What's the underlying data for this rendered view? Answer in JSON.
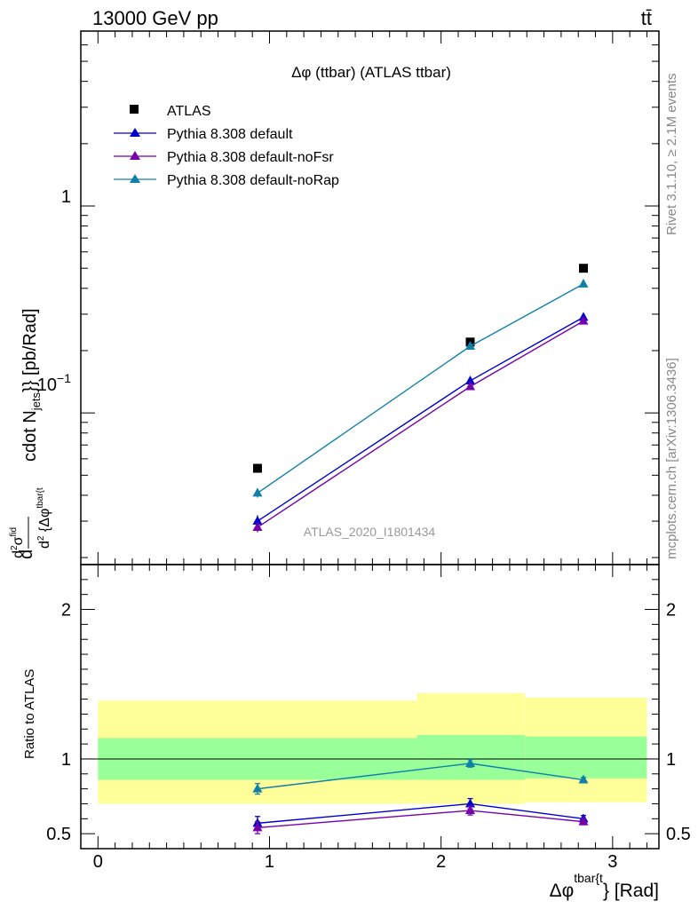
{
  "header": {
    "left": "13000 GeV pp",
    "right": "tt̄"
  },
  "side": {
    "rivet": "Rivet 3.1.10, ≥ 2.1M events",
    "mcplots": "mcplots.cern.ch [arXiv:1306.3436]"
  },
  "watermark": "ATLAS_2020_I1801434",
  "chart_data": [
    {
      "type": "scatter",
      "title": "Δφ (ttbar) (ATLAS ttbar)",
      "xlabel": "Δφ^{tbar{t}} [Rad]",
      "ylabel": "d²σ^{fid} / d² {Δφ^{tbar{t}} cdot N_{jets}} [pb/Rad]",
      "yscale": "log",
      "xlim": [
        -0.1,
        3.27
      ],
      "ylim": [
        0.0185,
        7.0
      ],
      "y_ticklabels": [
        {
          "value": 1,
          "label": "1"
        },
        {
          "value": 0.1,
          "label": "10^{-1}"
        }
      ],
      "legend_position": "top-left",
      "series": [
        {
          "name": "ATLAS",
          "color": "#000000",
          "marker": "square",
          "x": [
            0.93,
            2.17,
            2.83
          ],
          "y": [
            0.054,
            0.22,
            0.5
          ],
          "yerr": [
            0.002,
            0.006,
            0.01
          ]
        },
        {
          "name": "Pythia 8.308 default",
          "color": "#0000cc",
          "marker": "triangle",
          "x": [
            0.93,
            2.17,
            2.83
          ],
          "y": [
            0.03,
            0.143,
            0.29
          ],
          "yerr": [
            0.002,
            0.006,
            0.005
          ]
        },
        {
          "name": "Pythia 8.308 default-noFsr",
          "color": "#7700aa",
          "marker": "triangle",
          "x": [
            0.93,
            2.17,
            2.83
          ],
          "y": [
            0.028,
            0.134,
            0.278
          ],
          "yerr": [
            0.0015,
            0.005,
            0.004
          ]
        },
        {
          "name": "Pythia 8.308 default-noRap",
          "color": "#1180a8",
          "marker": "triangle",
          "x": [
            0.93,
            2.17,
            2.83
          ],
          "y": [
            0.041,
            0.21,
            0.42
          ],
          "yerr": [
            0.002,
            0.005,
            0.005
          ]
        }
      ]
    },
    {
      "type": "scatter",
      "xlabel": "Δφ^{tbar{t}} [Rad]",
      "ylabel": "Ratio to ATLAS",
      "xlim": [
        -0.1,
        3.27
      ],
      "ylim": [
        0.4,
        2.3
      ],
      "x_ticks": [
        0,
        1,
        2,
        3
      ],
      "y_ticks": [
        0.5,
        1,
        2
      ],
      "reference_line": 1,
      "bands": [
        {
          "x0": 0.0,
          "x1": 1.86,
          "inner": [
            0.86,
            1.14
          ],
          "outer": [
            0.7,
            1.39
          ]
        },
        {
          "x0": 1.86,
          "x1": 2.49,
          "inner": [
            0.86,
            1.16
          ],
          "outer": [
            0.7,
            1.44
          ]
        },
        {
          "x0": 2.49,
          "x1": 3.2,
          "inner": [
            0.87,
            1.15
          ],
          "outer": [
            0.71,
            1.41
          ]
        }
      ],
      "band_colors": {
        "inner": "#99ff99",
        "outer": "#ffff99"
      },
      "series": [
        {
          "name": "Pythia 8.308 default",
          "color": "#0000cc",
          "x": [
            0.93,
            2.17,
            2.83
          ],
          "y": [
            0.57,
            0.7,
            0.6
          ],
          "yerr": [
            0.045,
            0.035,
            0.022
          ]
        },
        {
          "name": "Pythia 8.308 default-noFsr",
          "color": "#7700aa",
          "x": [
            0.93,
            2.17,
            2.83
          ],
          "y": [
            0.54,
            0.655,
            0.58
          ],
          "yerr": [
            0.04,
            0.03,
            0.02
          ]
        },
        {
          "name": "Pythia 8.308 default-noRap",
          "color": "#1180a8",
          "x": [
            0.93,
            2.17,
            2.83
          ],
          "y": [
            0.8,
            0.97,
            0.86
          ],
          "yerr": [
            0.035,
            0.025,
            0.016
          ]
        }
      ]
    }
  ]
}
